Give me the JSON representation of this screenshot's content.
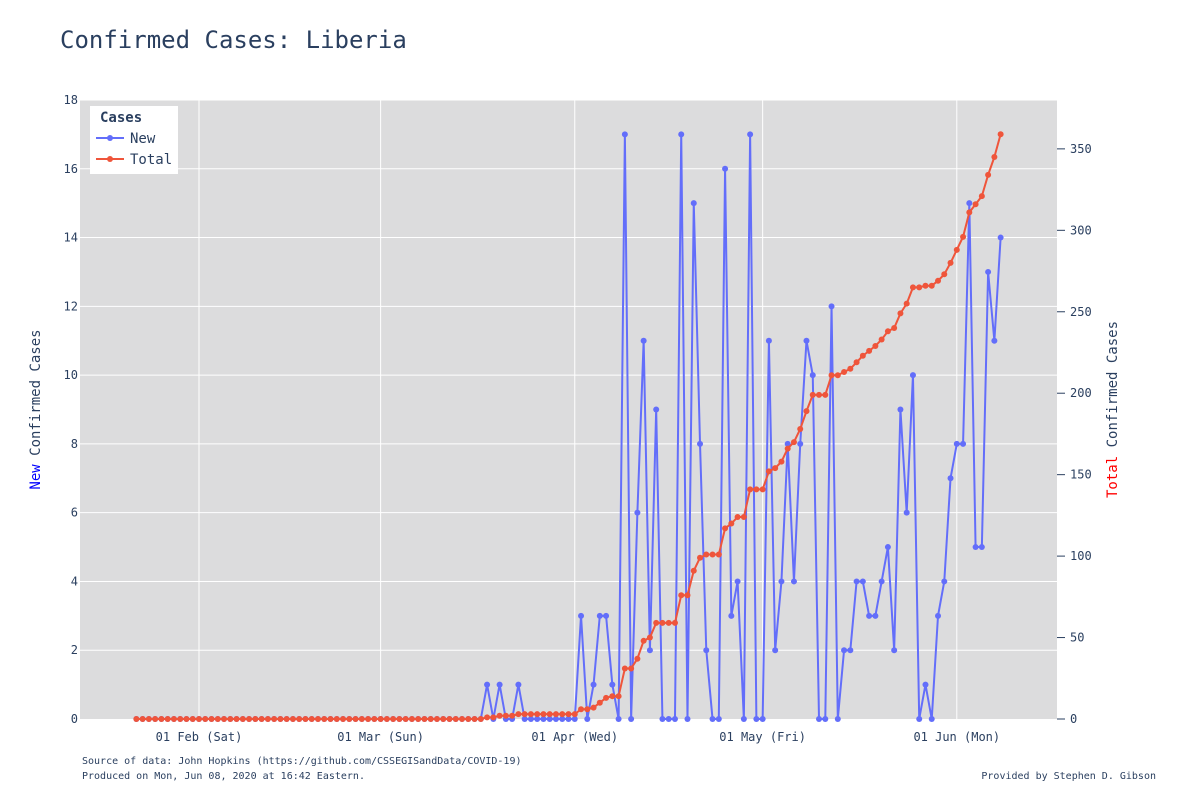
{
  "chart_data": {
    "type": "line",
    "title": "Confirmed Cases: Liberia",
    "x_start_date": "2020-01-22",
    "x": "daily, 2020-01-22 to 2020-06-07",
    "x_ticks": [
      "01 Feb (Sat)",
      "01 Mar (Sun)",
      "01 Apr (Wed)",
      "01 May (Fri)",
      "01 Jun (Mon)"
    ],
    "y_left": {
      "label_colored": "New",
      "label_rest": " Confirmed Cases",
      "label_color": "#0000ff",
      "range": [
        0,
        18
      ],
      "ticks": [
        0,
        2,
        4,
        6,
        8,
        10,
        12,
        14,
        16,
        18
      ]
    },
    "y_right": {
      "label_colored": "Total",
      "label_rest": " Confirmed Cases",
      "label_color": "#ff0000",
      "range": [
        0,
        380
      ],
      "ticks": [
        0,
        50,
        100,
        150,
        200,
        250,
        300,
        350
      ]
    },
    "legend": {
      "title": "Cases",
      "position": "top-left"
    },
    "grid": true,
    "series": [
      {
        "name": "New",
        "color": "#636efa",
        "axis": "left",
        "values": [
          0,
          0,
          0,
          0,
          0,
          0,
          0,
          0,
          0,
          0,
          0,
          0,
          0,
          0,
          0,
          0,
          0,
          0,
          0,
          0,
          0,
          0,
          0,
          0,
          0,
          0,
          0,
          0,
          0,
          0,
          0,
          0,
          0,
          0,
          0,
          0,
          0,
          0,
          0,
          0,
          0,
          0,
          0,
          0,
          0,
          0,
          0,
          0,
          0,
          0,
          0,
          0,
          0,
          0,
          0,
          0,
          1,
          0,
          1,
          0,
          0,
          1,
          0,
          0,
          0,
          0,
          0,
          0,
          0,
          0,
          0,
          3,
          0,
          1,
          3,
          3,
          1,
          0,
          17,
          0,
          6,
          11,
          2,
          9,
          0,
          0,
          0,
          17,
          0,
          15,
          8,
          2,
          0,
          0,
          16,
          3,
          4,
          0,
          17,
          0,
          0,
          11,
          2,
          4,
          8,
          4,
          8,
          11,
          10,
          0,
          0,
          12,
          0,
          2,
          2,
          4,
          4,
          3,
          3,
          4,
          5,
          2,
          9,
          6,
          10,
          0,
          1,
          0,
          3,
          4,
          7,
          8,
          8,
          15,
          5,
          5,
          13,
          11,
          14
        ]
      },
      {
        "name": "Total",
        "color": "#ef553b",
        "axis": "right",
        "values": [
          0,
          0,
          0,
          0,
          0,
          0,
          0,
          0,
          0,
          0,
          0,
          0,
          0,
          0,
          0,
          0,
          0,
          0,
          0,
          0,
          0,
          0,
          0,
          0,
          0,
          0,
          0,
          0,
          0,
          0,
          0,
          0,
          0,
          0,
          0,
          0,
          0,
          0,
          0,
          0,
          0,
          0,
          0,
          0,
          0,
          0,
          0,
          0,
          0,
          0,
          0,
          0,
          0,
          0,
          0,
          0,
          1,
          1,
          2,
          2,
          2,
          3,
          3,
          3,
          3,
          3,
          3,
          3,
          3,
          3,
          3,
          6,
          6,
          7,
          10,
          13,
          14,
          14,
          31,
          31,
          37,
          48,
          50,
          59,
          59,
          59,
          59,
          76,
          76,
          91,
          99,
          101,
          101,
          101,
          117,
          120,
          124,
          124,
          141,
          141,
          141,
          152,
          154,
          158,
          166,
          170,
          178,
          189,
          199,
          199,
          199,
          211,
          211,
          213,
          215,
          219,
          223,
          226,
          229,
          233,
          238,
          240,
          249,
          255,
          265,
          265,
          266,
          266,
          269,
          273,
          280,
          288,
          296,
          311,
          316,
          321,
          334,
          345,
          359
        ]
      }
    ]
  },
  "footer": {
    "source": "Source of data: John Hopkins (https://github.com/CSSEGISandData/COVID-19)",
    "produced": "Produced on Mon, Jun 08, 2020 at 16:42 Eastern.",
    "credit": "Provided by Stephen D. Gibson"
  }
}
